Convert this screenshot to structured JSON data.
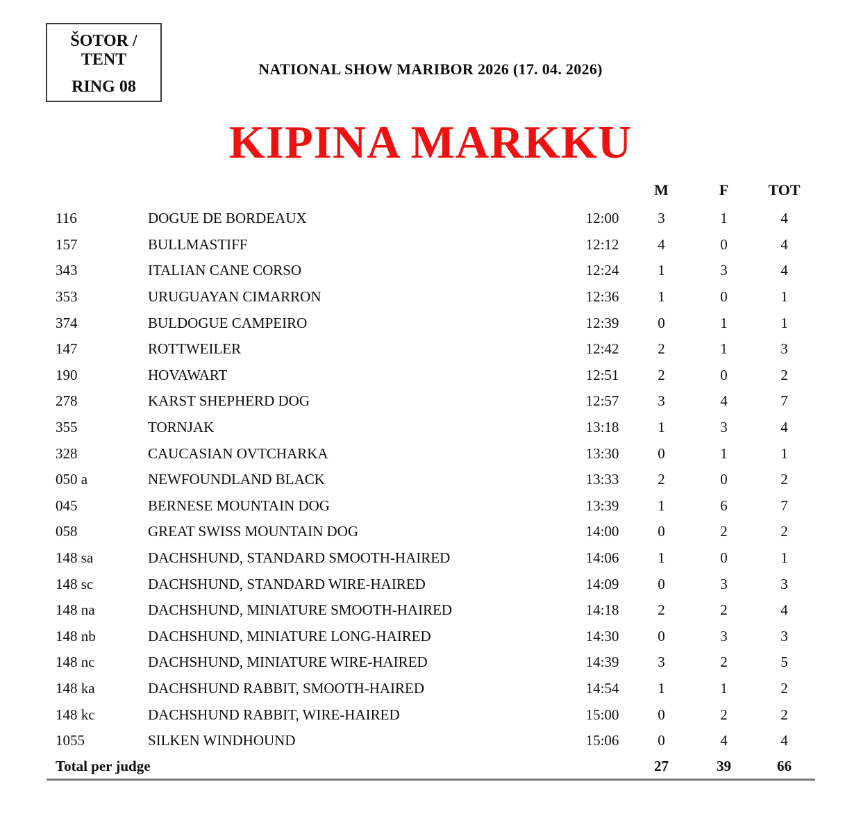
{
  "header": {
    "tent_box": {
      "location_line1": "ŠOTOR /",
      "location_line2": "TENT",
      "ring": "RING 08"
    },
    "show_title": "NATIONAL SHOW MARIBOR 2026 (17. 04. 2026)",
    "judge_name": "KIPINA MARKKU"
  },
  "colors": {
    "judge_name_red": "#ee1111",
    "text": "#0d0d0d"
  },
  "table": {
    "column_headers": {
      "male": "M",
      "female": "F",
      "total": "TOT"
    },
    "rows": [
      {
        "cat": "116",
        "breed": "DOGUE DE BORDEAUX",
        "time": "12:00",
        "m": "3",
        "f": "1",
        "tot": "4"
      },
      {
        "cat": "157",
        "breed": "BULLMASTIFF",
        "time": "12:12",
        "m": "4",
        "f": "0",
        "tot": "4"
      },
      {
        "cat": "343",
        "breed": "ITALIAN CANE CORSO",
        "time": "12:24",
        "m": "1",
        "f": "3",
        "tot": "4"
      },
      {
        "cat": "353",
        "breed": "URUGUAYAN CIMARRON",
        "time": "12:36",
        "m": "1",
        "f": "0",
        "tot": "1"
      },
      {
        "cat": "374",
        "breed": "BULDOGUE CAMPEIRO",
        "time": "12:39",
        "m": "0",
        "f": "1",
        "tot": "1"
      },
      {
        "cat": "147",
        "breed": "ROTTWEILER",
        "time": "12:42",
        "m": "2",
        "f": "1",
        "tot": "3"
      },
      {
        "cat": "190",
        "breed": "HOVAWART",
        "time": "12:51",
        "m": "2",
        "f": "0",
        "tot": "2"
      },
      {
        "cat": "278",
        "breed": "KARST SHEPHERD DOG",
        "time": "12:57",
        "m": "3",
        "f": "4",
        "tot": "7"
      },
      {
        "cat": "355",
        "breed": "TORNJAK",
        "time": "13:18",
        "m": "1",
        "f": "3",
        "tot": "4"
      },
      {
        "cat": "328",
        "breed": "CAUCASIAN OVTCHARKA",
        "time": "13:30",
        "m": "0",
        "f": "1",
        "tot": "1"
      },
      {
        "cat": "050 a",
        "breed": "NEWFOUNDLAND BLACK",
        "time": "13:33",
        "m": "2",
        "f": "0",
        "tot": "2"
      },
      {
        "cat": "045",
        "breed": "BERNESE MOUNTAIN DOG",
        "time": "13:39",
        "m": "1",
        "f": "6",
        "tot": "7"
      },
      {
        "cat": "058",
        "breed": "GREAT SWISS MOUNTAIN DOG",
        "time": "14:00",
        "m": "0",
        "f": "2",
        "tot": "2"
      },
      {
        "cat": "148 sa",
        "breed": "DACHSHUND, STANDARD SMOOTH-HAIRED",
        "time": "14:06",
        "m": "1",
        "f": "0",
        "tot": "1"
      },
      {
        "cat": "148 sc",
        "breed": "DACHSHUND, STANDARD WIRE-HAIRED",
        "time": "14:09",
        "m": "0",
        "f": "3",
        "tot": "3"
      },
      {
        "cat": "148 na",
        "breed": "DACHSHUND, MINIATURE SMOOTH-HAIRED",
        "time": "14:18",
        "m": "2",
        "f": "2",
        "tot": "4"
      },
      {
        "cat": "148 nb",
        "breed": "DACHSHUND, MINIATURE LONG-HAIRED",
        "time": "14:30",
        "m": "0",
        "f": "3",
        "tot": "3"
      },
      {
        "cat": "148 nc",
        "breed": "DACHSHUND, MINIATURE WIRE-HAIRED",
        "time": "14:39",
        "m": "3",
        "f": "2",
        "tot": "5"
      },
      {
        "cat": "148 ka",
        "breed": "DACHSHUND RABBIT, SMOOTH-HAIRED",
        "time": "14:54",
        "m": "1",
        "f": "1",
        "tot": "2"
      },
      {
        "cat": "148 kc",
        "breed": "DACHSHUND RABBIT, WIRE-HAIRED",
        "time": "15:00",
        "m": "0",
        "f": "2",
        "tot": "2"
      },
      {
        "cat": "1055",
        "breed": "SILKEN WINDHOUND",
        "time": "15:06",
        "m": "0",
        "f": "4",
        "tot": "4"
      }
    ],
    "footer": {
      "label": "Total per judge",
      "m": "27",
      "f": "39",
      "tot": "66"
    }
  }
}
